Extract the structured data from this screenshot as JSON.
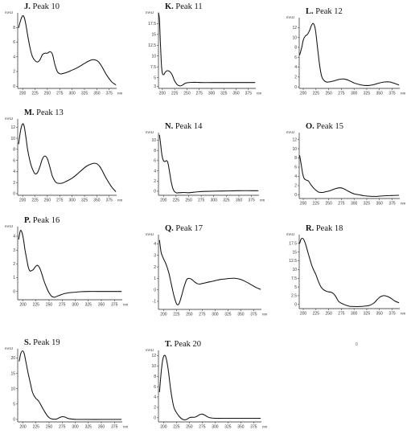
{
  "figure": {
    "stray_label": "0"
  },
  "chart_data": [
    {
      "type": "line",
      "letter": "J.",
      "name": "Peak 10",
      "ylabel": "mAU",
      "xunit": "nm",
      "x_ticks": [
        200,
        225,
        250,
        275,
        300,
        325,
        350,
        375
      ],
      "y_ticks": [
        0,
        2,
        4,
        6,
        8
      ],
      "xlim": [
        190,
        390
      ],
      "ylim": [
        -0.3,
        10
      ],
      "x": [
        192,
        196,
        200,
        203,
        206,
        210,
        215,
        220,
        225,
        230,
        235,
        240,
        245,
        250,
        255,
        260,
        265,
        270,
        275,
        280,
        290,
        300,
        310,
        320,
        330,
        340,
        345,
        350,
        355,
        360,
        370,
        380,
        388
      ],
      "y": [
        8.0,
        9.0,
        9.6,
        9.4,
        8.6,
        7.0,
        5.2,
        4.0,
        3.5,
        3.3,
        3.6,
        4.3,
        4.5,
        4.5,
        4.7,
        4.4,
        3.0,
        2.0,
        1.7,
        1.7,
        1.9,
        2.2,
        2.5,
        2.9,
        3.3,
        3.6,
        3.6,
        3.5,
        3.2,
        2.7,
        1.5,
        0.6,
        0.2
      ]
    },
    {
      "type": "line",
      "letter": "K.",
      "name": "Peak 11",
      "ylabel": "mAU",
      "xunit": "nm",
      "x_ticks": [
        200,
        225,
        250,
        275,
        300,
        325,
        350,
        375
      ],
      "y_ticks": [
        3,
        5,
        7.5,
        10,
        12.5,
        15,
        17.5
      ],
      "y_tick_labels": [
        "3",
        "5",
        "7.5",
        "10",
        "12.5",
        "15",
        "17.5"
      ],
      "xlim": [
        192,
        390
      ],
      "ylim": [
        2.5,
        20
      ],
      "x": [
        192,
        194,
        196,
        198,
        200,
        203,
        206,
        210,
        215,
        220,
        225,
        230,
        235,
        240,
        245,
        250,
        260,
        270,
        280,
        300,
        325,
        350,
        375,
        388
      ],
      "y": [
        20,
        18.5,
        13.0,
        8.0,
        6.0,
        5.7,
        6.3,
        6.6,
        6.4,
        5.6,
        4.2,
        3.4,
        3.1,
        3.2,
        3.6,
        3.8,
        3.9,
        3.9,
        3.85,
        3.85,
        3.85,
        3.85,
        3.85,
        3.85
      ]
    },
    {
      "type": "line",
      "letter": "L.",
      "name": "Peak 12",
      "ylabel": "mAU",
      "xunit": "nm",
      "x_ticks": [
        200,
        225,
        250,
        275,
        300,
        325,
        350,
        375
      ],
      "y_ticks": [
        0,
        2,
        4,
        6,
        8,
        10,
        12
      ],
      "xlim": [
        192,
        390
      ],
      "ylim": [
        -0.3,
        14
      ],
      "x": [
        193,
        197,
        200,
        204,
        208,
        212,
        216,
        220,
        224,
        228,
        232,
        236,
        240,
        245,
        250,
        260,
        270,
        280,
        290,
        300,
        310,
        320,
        330,
        340,
        350,
        360,
        370,
        380,
        388
      ],
      "y": [
        6.5,
        8.0,
        9.5,
        10.3,
        10.6,
        11.3,
        12.4,
        12.8,
        11.5,
        8.0,
        4.5,
        2.2,
        1.4,
        1.0,
        1.0,
        1.2,
        1.5,
        1.6,
        1.3,
        0.8,
        0.5,
        0.3,
        0.3,
        0.5,
        0.8,
        1.0,
        1.0,
        0.7,
        0.4
      ]
    },
    {
      "type": "line",
      "letter": "M.",
      "name": "Peak 13",
      "ylabel": "mAU",
      "xunit": "nm",
      "x_ticks": [
        200,
        225,
        250,
        275,
        300,
        325,
        350,
        375
      ],
      "y_ticks": [
        0,
        2,
        4,
        6,
        8,
        10,
        12
      ],
      "xlim": [
        190,
        390
      ],
      "ylim": [
        -0.3,
        13.5
      ],
      "x": [
        192,
        196,
        200,
        203,
        206,
        210,
        215,
        220,
        225,
        230,
        235,
        240,
        245,
        250,
        255,
        260,
        265,
        270,
        280,
        290,
        300,
        310,
        320,
        330,
        340,
        345,
        350,
        355,
        360,
        370,
        380,
        388
      ],
      "y": [
        9.0,
        11.5,
        12.6,
        12.2,
        10.6,
        8.0,
        5.8,
        4.4,
        3.6,
        3.8,
        4.9,
        6.3,
        6.8,
        6.3,
        4.8,
        3.2,
        2.3,
        1.9,
        1.9,
        2.3,
        2.8,
        3.5,
        4.3,
        5.0,
        5.4,
        5.5,
        5.4,
        5.0,
        4.3,
        2.6,
        1.2,
        0.4
      ]
    },
    {
      "type": "line",
      "letter": "N.",
      "name": "Peak 14",
      "ylabel": "mAU",
      "xunit": "nm",
      "x_ticks": [
        200,
        225,
        250,
        275,
        300,
        325,
        350,
        375
      ],
      "y_ticks": [
        0,
        2,
        4,
        6,
        8,
        10
      ],
      "xlim": [
        190,
        390
      ],
      "ylim": [
        -0.8,
        11.5
      ],
      "x": [
        192,
        194,
        197,
        200,
        203,
        206,
        208,
        210,
        213,
        216,
        220,
        225,
        230,
        240,
        250,
        260,
        270,
        280,
        300,
        325,
        350,
        375,
        388
      ],
      "y": [
        11.0,
        9.5,
        7.0,
        6.0,
        5.8,
        6.0,
        5.8,
        5.0,
        3.2,
        1.5,
        0.2,
        -0.3,
        -0.3,
        -0.25,
        -0.3,
        -0.2,
        -0.1,
        -0.05,
        0.0,
        0.05,
        0.1,
        0.1,
        0.1
      ]
    },
    {
      "type": "line",
      "letter": "O.",
      "name": "Peak 15",
      "ylabel": "mAU",
      "xunit": "nm",
      "x_ticks": [
        200,
        225,
        250,
        275,
        300,
        325,
        350,
        375
      ],
      "y_ticks": [
        0,
        2,
        4,
        6,
        8,
        10,
        12
      ],
      "xlim": [
        192,
        390
      ],
      "ylim": [
        -0.8,
        13.5
      ],
      "x": [
        193,
        196,
        199,
        202,
        206,
        210,
        215,
        220,
        225,
        230,
        235,
        240,
        245,
        250,
        255,
        260,
        265,
        270,
        275,
        280,
        285,
        290,
        300,
        310,
        320,
        330,
        340,
        350,
        360,
        375,
        388
      ],
      "y": [
        8.5,
        6.5,
        4.5,
        3.5,
        3.2,
        3.0,
        2.2,
        1.5,
        1.0,
        0.6,
        0.5,
        0.55,
        0.7,
        0.8,
        1.0,
        1.2,
        1.4,
        1.5,
        1.5,
        1.3,
        1.0,
        0.7,
        0.2,
        0.0,
        -0.2,
        -0.3,
        -0.35,
        -0.3,
        -0.2,
        -0.15,
        -0.1
      ]
    },
    {
      "type": "line",
      "letter": "P.",
      "name": "Peak 16",
      "ylabel": "mAU",
      "xunit": "nm",
      "x_ticks": [
        200,
        225,
        250,
        275,
        300,
        325,
        350,
        375
      ],
      "y_ticks": [
        0,
        1,
        2,
        3,
        4
      ],
      "xlim": [
        190,
        390
      ],
      "ylim": [
        -0.6,
        4.7
      ],
      "x": [
        192,
        195,
        198,
        201,
        204,
        207,
        210,
        213,
        216,
        220,
        224,
        228,
        232,
        236,
        240,
        245,
        250,
        255,
        260,
        265,
        270,
        280,
        290,
        300,
        310,
        325,
        350,
        375,
        388
      ],
      "y": [
        3.8,
        4.4,
        4.3,
        3.8,
        3.0,
        2.4,
        1.8,
        1.5,
        1.5,
        1.6,
        1.8,
        1.9,
        1.7,
        1.3,
        0.8,
        0.3,
        -0.1,
        -0.35,
        -0.42,
        -0.35,
        -0.28,
        -0.15,
        -0.08,
        -0.05,
        -0.02,
        0.0,
        0.0,
        0.0,
        0.0
      ]
    },
    {
      "type": "line",
      "letter": "Q.",
      "name": "Peak 17",
      "ylabel": "mAU",
      "xunit": "nm",
      "x_ticks": [
        200,
        225,
        250,
        275,
        300,
        325,
        350,
        375
      ],
      "y_ticks": [
        -1,
        0,
        1,
        2,
        3,
        4
      ],
      "xlim": [
        190,
        390
      ],
      "ylim": [
        -1.7,
        4.8
      ],
      "x": [
        192,
        195,
        198,
        201,
        205,
        210,
        215,
        220,
        225,
        228,
        231,
        235,
        240,
        245,
        250,
        255,
        260,
        265,
        270,
        275,
        280,
        290,
        300,
        310,
        320,
        330,
        340,
        350,
        360,
        370,
        380,
        388
      ],
      "y": [
        4.3,
        3.3,
        2.9,
        2.6,
        2.2,
        1.5,
        0.5,
        -0.5,
        -1.2,
        -1.3,
        -1.1,
        -0.5,
        0.3,
        0.9,
        1.0,
        0.9,
        0.7,
        0.55,
        0.5,
        0.55,
        0.6,
        0.7,
        0.8,
        0.9,
        0.95,
        1.0,
        1.0,
        0.9,
        0.7,
        0.45,
        0.2,
        0.05
      ]
    },
    {
      "type": "line",
      "letter": "R.",
      "name": "Peak 18",
      "ylabel": "mAU",
      "xunit": "nm",
      "x_ticks": [
        200,
        225,
        250,
        275,
        300,
        325,
        350,
        375
      ],
      "y_ticks": [
        0,
        2.5,
        5,
        7.5,
        10,
        12.5,
        15,
        17.5
      ],
      "y_tick_labels": [
        "0",
        "2.5",
        "5",
        "7.5",
        "10",
        "12.5",
        "15",
        "17.5"
      ],
      "xlim": [
        192,
        390
      ],
      "ylim": [
        -1.2,
        20
      ],
      "x": [
        193,
        196,
        200,
        204,
        208,
        212,
        216,
        220,
        225,
        230,
        235,
        240,
        245,
        250,
        255,
        260,
        265,
        270,
        280,
        290,
        300,
        310,
        320,
        330,
        340,
        345,
        350,
        355,
        360,
        370,
        380,
        388
      ],
      "y": [
        17.5,
        18.8,
        18.8,
        17.5,
        15.5,
        13.5,
        11.5,
        10.0,
        8.5,
        6.5,
        5.0,
        4.2,
        3.8,
        3.6,
        3.5,
        3.0,
        2.0,
        0.8,
        0.0,
        -0.5,
        -0.6,
        -0.6,
        -0.5,
        -0.3,
        0.5,
        1.3,
        2.0,
        2.4,
        2.5,
        2.0,
        1.0,
        0.5
      ]
    },
    {
      "type": "line",
      "letter": "S.",
      "name": "Peak 19",
      "ylabel": "mAU",
      "xunit": "nm",
      "x_ticks": [
        200,
        225,
        250,
        275,
        300,
        325,
        350,
        375
      ],
      "y_ticks": [
        0,
        5,
        10,
        15,
        20
      ],
      "xlim": [
        190,
        390
      ],
      "ylim": [
        -0.8,
        23
      ],
      "x": [
        193,
        196,
        200,
        203,
        206,
        210,
        214,
        218,
        222,
        225,
        230,
        235,
        240,
        245,
        250,
        255,
        260,
        265,
        270,
        275,
        280,
        285,
        290,
        300,
        325,
        350,
        375,
        388
      ],
      "y": [
        19.0,
        21.5,
        22.3,
        21.0,
        18.5,
        15.0,
        12.0,
        9.0,
        7.5,
        6.8,
        6.0,
        4.5,
        3.0,
        1.6,
        0.6,
        0.2,
        0.1,
        0.2,
        0.6,
        0.9,
        0.8,
        0.4,
        0.2,
        0.05,
        0.0,
        0.0,
        0.0,
        0.0
      ]
    },
    {
      "type": "line",
      "letter": "T.",
      "name": "Peak 20",
      "ylabel": "mAU",
      "xunit": "nm",
      "x_ticks": [
        200,
        225,
        250,
        275,
        300,
        325,
        350,
        375
      ],
      "y_ticks": [
        0,
        2,
        4,
        6,
        8,
        10,
        12
      ],
      "xlim": [
        190,
        390
      ],
      "ylim": [
        -0.8,
        13
      ],
      "x": [
        192,
        195,
        198,
        201,
        204,
        207,
        210,
        213,
        216,
        220,
        225,
        230,
        235,
        240,
        245,
        250,
        255,
        260,
        265,
        270,
        275,
        280,
        285,
        290,
        300,
        325,
        350,
        375,
        388
      ],
      "y": [
        5.0,
        8.5,
        11.0,
        12.0,
        11.8,
        10.5,
        8.5,
        6.0,
        4.0,
        2.0,
        1.0,
        0.3,
        -0.2,
        -0.4,
        -0.3,
        0.0,
        0.1,
        0.1,
        0.3,
        0.6,
        0.7,
        0.5,
        0.2,
        0.0,
        -0.1,
        -0.1,
        -0.1,
        -0.1,
        -0.1
      ]
    }
  ]
}
